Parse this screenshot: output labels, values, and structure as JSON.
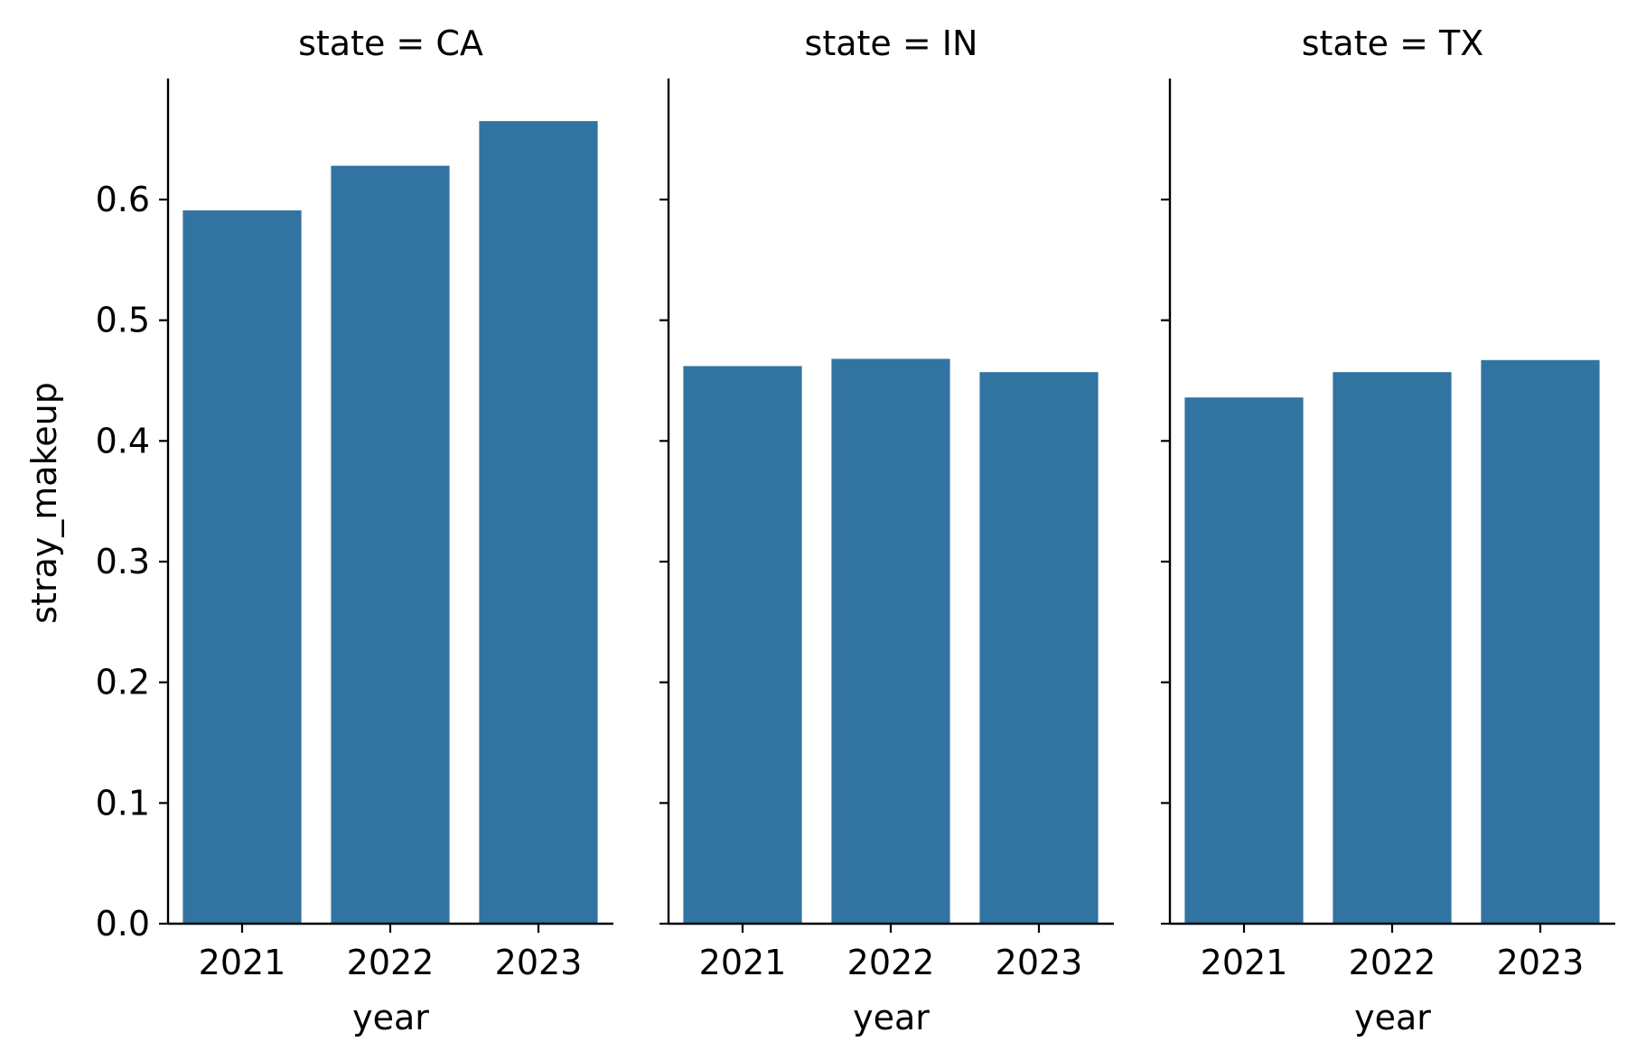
{
  "chart_data": {
    "type": "bar",
    "layout": "facet-columns",
    "facet_label": "state",
    "facet_title_format": "state = {}",
    "ylabel": "stray_makeup",
    "xlabel": "year",
    "ylim": [
      0,
      0.7
    ],
    "yticks": [
      0.0,
      0.1,
      0.2,
      0.3,
      0.4,
      0.5,
      0.6
    ],
    "ytick_labels": [
      "0.0",
      "0.1",
      "0.2",
      "0.3",
      "0.4",
      "0.5",
      "0.6"
    ],
    "grid": false,
    "shared_y": true,
    "bar_color": "#3274a1",
    "facets": [
      {
        "title": "state = CA",
        "categories": [
          "2021",
          "2022",
          "2023"
        ],
        "values": [
          0.591,
          0.628,
          0.665
        ]
      },
      {
        "title": "state = IN",
        "categories": [
          "2021",
          "2022",
          "2023"
        ],
        "values": [
          0.462,
          0.468,
          0.457
        ]
      },
      {
        "title": "state = TX",
        "categories": [
          "2021",
          "2022",
          "2023"
        ],
        "values": [
          0.436,
          0.457,
          0.467
        ]
      }
    ]
  }
}
